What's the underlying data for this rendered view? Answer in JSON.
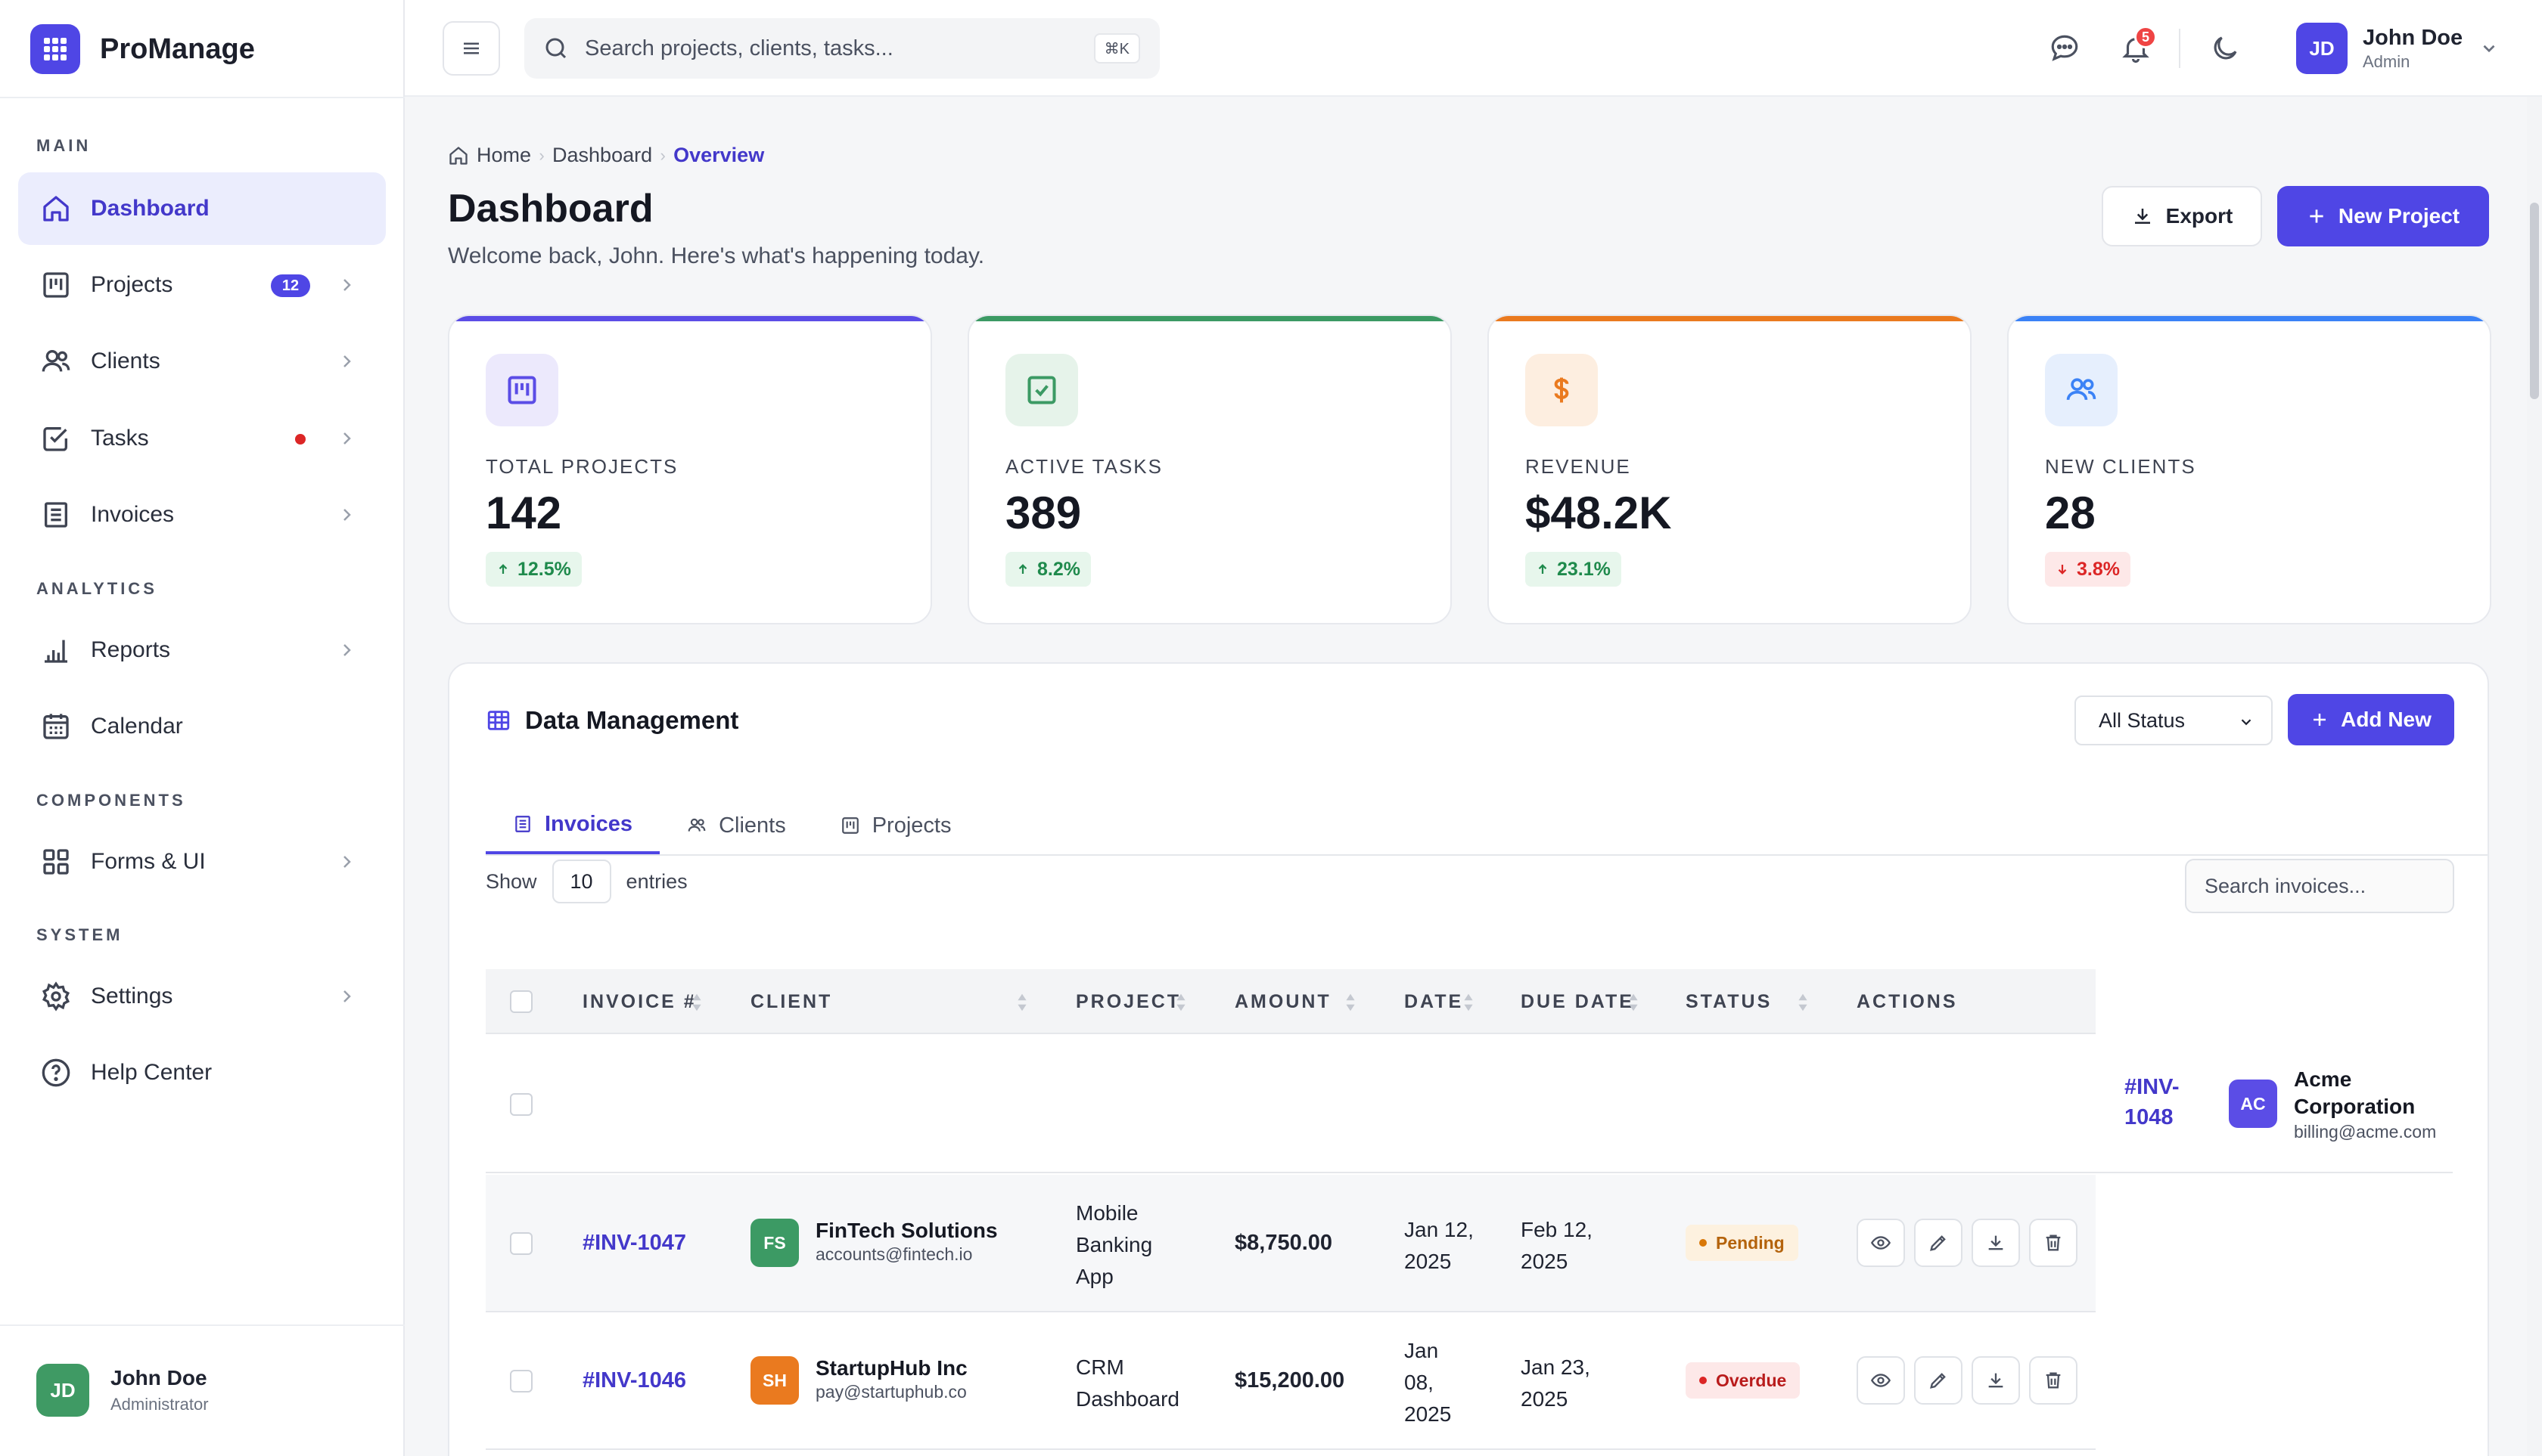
{
  "brand": {
    "name": "ProManage"
  },
  "sidebar": {
    "sections": {
      "main": "MAIN",
      "analytics": "ANALYTICS",
      "components": "COMPONENTS",
      "system": "SYSTEM"
    },
    "items": {
      "dashboard": {
        "label": "Dashboard",
        "active": true
      },
      "projects": {
        "label": "Projects",
        "badge": "12"
      },
      "clients": {
        "label": "Clients"
      },
      "tasks": {
        "label": "Tasks",
        "dot": true
      },
      "invoices": {
        "label": "Invoices"
      },
      "reports": {
        "label": "Reports"
      },
      "calendar": {
        "label": "Calendar"
      },
      "forms": {
        "label": "Forms & UI"
      },
      "settings": {
        "label": "Settings"
      },
      "help": {
        "label": "Help Center"
      }
    },
    "user": {
      "initials": "JD",
      "name": "John Doe",
      "role": "Administrator"
    }
  },
  "topbar": {
    "search_placeholder": "Search projects, clients, tasks...",
    "search_shortcut": "⌘K",
    "notification_count": "5",
    "user": {
      "initials": "JD",
      "name": "John Doe",
      "role": "Admin"
    }
  },
  "breadcrumb": {
    "home": "Home",
    "dashboard": "Dashboard",
    "current": "Overview"
  },
  "page": {
    "title": "Dashboard",
    "subtitle": "Welcome back, John. Here's what's happening today.",
    "export_label": "Export",
    "new_project_label": "New Project"
  },
  "stats": [
    {
      "label": "TOTAL PROJECTS",
      "value": "142",
      "trend": "12.5%",
      "direction": "up",
      "accent": "#5b4de6"
    },
    {
      "label": "ACTIVE TASKS",
      "value": "389",
      "trend": "8.2%",
      "direction": "up",
      "accent": "#3c9a64"
    },
    {
      "label": "REVENUE",
      "value": "$48.2K",
      "trend": "23.1%",
      "direction": "up",
      "accent": "#ea7a1f"
    },
    {
      "label": "NEW CLIENTS",
      "value": "28",
      "trend": "3.8%",
      "direction": "down",
      "accent": "#3b82f6"
    }
  ],
  "data_management": {
    "title": "Data Management",
    "status_filter": "All Status",
    "add_new_label": "Add New",
    "tabs": [
      "Invoices",
      "Clients",
      "Projects"
    ],
    "show_label": "Show",
    "entries_value": "10",
    "entries_label": "entries",
    "search_placeholder": "Search invoices...",
    "columns": [
      "INVOICE #",
      "CLIENT",
      "PROJECT",
      "AMOUNT",
      "DATE",
      "DUE DATE",
      "STATUS",
      "ACTIONS"
    ],
    "overflow_row": {
      "invoice": "#INV-1048",
      "client_initials": "AC",
      "client_name": "Acme Corporation",
      "client_email": "billing@acme.com"
    },
    "rows": [
      {
        "invoice": "#INV-1047",
        "client_initials": "FS",
        "client_name": "FinTech Solutions",
        "client_email": "accounts@fintech.io",
        "project": "Mobile Banking App",
        "amount": "$8,750.00",
        "date": "Jan 12, 2025",
        "due_date": "Feb 12, 2025",
        "status": "Pending"
      },
      {
        "invoice": "#INV-1046",
        "client_initials": "SH",
        "client_name": "StartupHub Inc",
        "client_email": "pay@startuphub.co",
        "project": "CRM Dashboard",
        "amount": "$15,200.00",
        "date": "Jan 08, 2025",
        "due_date": "Jan 23, 2025",
        "status": "Overdue"
      }
    ]
  },
  "colors": {
    "primary": "#4f46e5",
    "avatar_ac": "#5b4de6",
    "avatar_fs": "#3c9a64",
    "avatar_sh": "#ea7a1f"
  }
}
